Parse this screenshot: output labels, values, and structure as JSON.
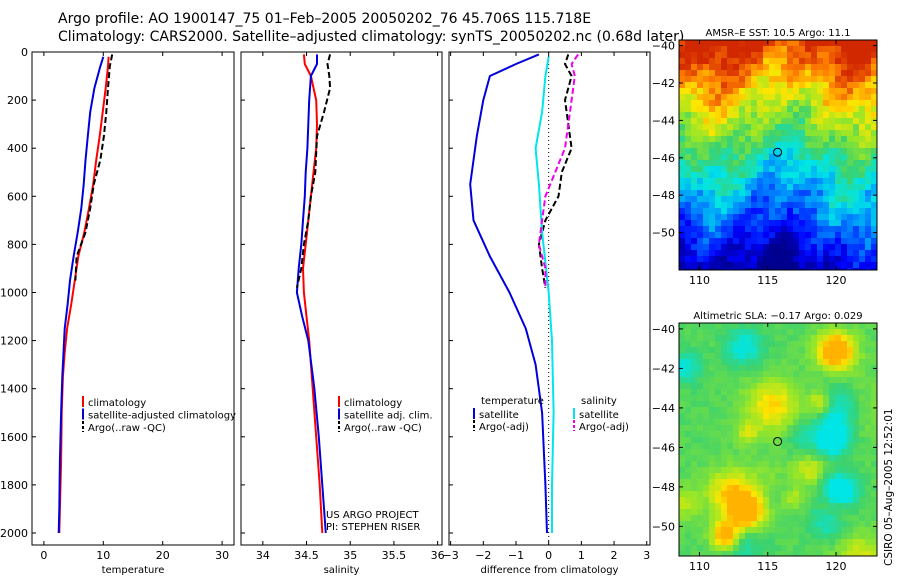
{
  "title": {
    "line1": "Argo profile: AO 1900147_75 01–Feb–2005 20050202_76 45.706S 115.718E",
    "line2": "Climatology: CARS2000. Satellite–adjusted climatology: synTS_20050202.nc (0.68d later)"
  },
  "side_label": "CSIRO 05–Aug–2005 12:52:01",
  "colors": {
    "red": "#ff0000",
    "blue": "#0000dd",
    "black": "#000000",
    "cyan": "#00e5ee",
    "magenta": "#ee00ee"
  },
  "chart_data": [
    {
      "type": "line",
      "xlabel": "temperature",
      "xlim": [
        -2,
        32
      ],
      "ylim": [
        2050,
        0
      ],
      "xticks": [
        "0",
        "10",
        "20",
        "30"
      ],
      "yticks": [
        "0",
        "200",
        "400",
        "600",
        "800",
        "1000",
        "1200",
        "1400",
        "1600",
        "1800",
        "2000"
      ],
      "legend": [
        "climatology",
        "satellite-adjusted climatology",
        "Argo(..raw -QC)"
      ],
      "series": [
        {
          "name": "climatology",
          "color": "red",
          "dash": false,
          "points": [
            [
              10.9,
              20
            ],
            [
              10.8,
              60
            ],
            [
              10.4,
              150
            ],
            [
              9.9,
              250
            ],
            [
              9.4,
              350
            ],
            [
              8.8,
              450
            ],
            [
              8.3,
              550
            ],
            [
              7.6,
              650
            ],
            [
              6.8,
              750
            ],
            [
              5.8,
              850
            ],
            [
              5.2,
              950
            ],
            [
              4.6,
              1050
            ],
            [
              3.9,
              1150
            ],
            [
              3.5,
              1250
            ],
            [
              3.2,
              1350
            ],
            [
              3.0,
              1500
            ],
            [
              2.9,
              1700
            ],
            [
              2.7,
              1900
            ],
            [
              2.6,
              2000
            ]
          ]
        },
        {
          "name": "satellite-adjusted climatology",
          "color": "blue",
          "dash": false,
          "points": [
            [
              10.0,
              20
            ],
            [
              9.5,
              60
            ],
            [
              8.5,
              150
            ],
            [
              7.8,
              250
            ],
            [
              7.4,
              350
            ],
            [
              7.0,
              450
            ],
            [
              6.7,
              550
            ],
            [
              6.3,
              650
            ],
            [
              5.7,
              750
            ],
            [
              5.0,
              850
            ],
            [
              4.4,
              950
            ],
            [
              4.0,
              1050
            ],
            [
              3.5,
              1150
            ],
            [
              3.3,
              1250
            ],
            [
              3.1,
              1350
            ],
            [
              2.9,
              1500
            ],
            [
              2.7,
              1700
            ],
            [
              2.6,
              1900
            ],
            [
              2.5,
              2000
            ]
          ]
        },
        {
          "name": "Argo(..raw -QC)",
          "color": "black",
          "dash": true,
          "points": [
            [
              11.5,
              10
            ],
            [
              11.1,
              60
            ],
            [
              10.8,
              150
            ],
            [
              10.5,
              250
            ],
            [
              10.1,
              350
            ],
            [
              9.5,
              450
            ],
            [
              8.4,
              550
            ],
            [
              7.8,
              650
            ],
            [
              7.0,
              750
            ],
            [
              5.5,
              850
            ],
            [
              5.3,
              950
            ]
          ]
        }
      ]
    },
    {
      "type": "line",
      "xlabel": "salinity",
      "xlim": [
        33.75,
        36.05
      ],
      "ylim": [
        2050,
        0
      ],
      "xticks": [
        "34",
        "34.5",
        "35",
        "35.5",
        "36"
      ],
      "legend": [
        "climatology",
        "satellite adj. clim.",
        "Argo(..raw -QC)"
      ],
      "annotation": [
        "US ARGO PROJECT",
        "PI: STEPHEN RISER"
      ],
      "series": [
        {
          "name": "climatology",
          "color": "red",
          "dash": false,
          "points": [
            [
              34.47,
              10
            ],
            [
              34.48,
              50
            ],
            [
              34.55,
              100
            ],
            [
              34.61,
              200
            ],
            [
              34.62,
              300
            ],
            [
              34.61,
              400
            ],
            [
              34.58,
              500
            ],
            [
              34.55,
              600
            ],
            [
              34.52,
              700
            ],
            [
              34.49,
              800
            ],
            [
              34.46,
              900
            ],
            [
              34.47,
              1000
            ],
            [
              34.5,
              1100
            ],
            [
              34.53,
              1200
            ],
            [
              34.57,
              1400
            ],
            [
              34.61,
              1600
            ],
            [
              34.65,
              1800
            ],
            [
              34.68,
              2000
            ]
          ]
        },
        {
          "name": "satellite adj. clim.",
          "color": "blue",
          "dash": false,
          "points": [
            [
              34.62,
              10
            ],
            [
              34.62,
              50
            ],
            [
              34.55,
              100
            ],
            [
              34.53,
              200
            ],
            [
              34.52,
              300
            ],
            [
              34.51,
              400
            ],
            [
              34.49,
              500
            ],
            [
              34.48,
              600
            ],
            [
              34.46,
              700
            ],
            [
              34.44,
              800
            ],
            [
              34.41,
              900
            ],
            [
              34.39,
              1000
            ],
            [
              34.45,
              1100
            ],
            [
              34.52,
              1200
            ],
            [
              34.59,
              1400
            ],
            [
              34.64,
              1600
            ],
            [
              34.68,
              1800
            ],
            [
              34.72,
              2000
            ]
          ]
        },
        {
          "name": "Argo(..raw -QC)",
          "color": "black",
          "dash": true,
          "points": [
            [
              34.77,
              10
            ],
            [
              34.74,
              50
            ],
            [
              34.76,
              100
            ],
            [
              34.77,
              150
            ],
            [
              34.7,
              250
            ],
            [
              34.62,
              350
            ],
            [
              34.6,
              500
            ],
            [
              34.55,
              600
            ],
            [
              34.52,
              700
            ],
            [
              34.47,
              800
            ],
            [
              34.44,
              900
            ],
            [
              34.39,
              980
            ]
          ]
        }
      ]
    },
    {
      "type": "line",
      "xlabel": "difference from climatology",
      "xlim": [
        -3.05,
        3.1
      ],
      "ylim": [
        2050,
        0
      ],
      "xticks": [
        "−3",
        "−2",
        "−1",
        "0",
        "1",
        "2",
        "3"
      ],
      "legend_left": {
        "header": "temperature",
        "items": [
          "satellite",
          "Argo(-adj)"
        ]
      },
      "legend_right": {
        "header": "salinity",
        "items": [
          "satellite",
          "Argo(-adj)"
        ]
      },
      "series": [
        {
          "name": "temperature satellite",
          "color": "blue",
          "dash": false,
          "points": [
            [
              -0.3,
              10
            ],
            [
              -1.0,
              50
            ],
            [
              -1.8,
              100
            ],
            [
              -2.0,
              200
            ],
            [
              -2.2,
              350
            ],
            [
              -2.4,
              550
            ],
            [
              -2.3,
              700
            ],
            [
              -1.8,
              850
            ],
            [
              -1.2,
              1000
            ],
            [
              -0.7,
              1150
            ],
            [
              -0.4,
              1300
            ],
            [
              -0.2,
              1500
            ],
            [
              -0.1,
              1800
            ],
            [
              -0.05,
              2000
            ]
          ]
        },
        {
          "name": "temperature Argo(-adj)",
          "color": "black",
          "dash": true,
          "points": [
            [
              0.6,
              10
            ],
            [
              0.5,
              50
            ],
            [
              0.7,
              100
            ],
            [
              0.5,
              200
            ],
            [
              0.6,
              300
            ],
            [
              0.7,
              400
            ],
            [
              0.4,
              500
            ],
            [
              0.3,
              600
            ],
            [
              -0.1,
              700
            ],
            [
              -0.3,
              800
            ],
            [
              -0.2,
              900
            ],
            [
              -0.1,
              980
            ]
          ]
        },
        {
          "name": "salinity satellite",
          "color": "cyan",
          "dash": false,
          "points": [
            [
              0.0,
              20
            ],
            [
              -0.1,
              100
            ],
            [
              -0.2,
              250
            ],
            [
              -0.4,
              400
            ],
            [
              -0.3,
              550
            ],
            [
              -0.2,
              750
            ],
            [
              0.0,
              1000
            ],
            [
              0.1,
              1200
            ],
            [
              0.15,
              1500
            ],
            [
              0.1,
              1800
            ],
            [
              0.1,
              2000
            ]
          ]
        },
        {
          "name": "salinity Argo(-adj)",
          "color": "magenta",
          "dash": true,
          "points": [
            [
              0.9,
              10
            ],
            [
              0.7,
              50
            ],
            [
              0.8,
              100
            ],
            [
              0.7,
              200
            ],
            [
              0.6,
              300
            ],
            [
              0.5,
              400
            ],
            [
              0.2,
              500
            ],
            [
              -0.1,
              600
            ],
            [
              -0.2,
              700
            ],
            [
              -0.3,
              800
            ],
            [
              -0.1,
              900
            ],
            [
              -0.1,
              980
            ]
          ]
        }
      ]
    },
    {
      "type": "heatmap",
      "title": "AMSR–E SST: 10.5 Argo: 11.1",
      "colormap": "sst",
      "xlim": [
        108.5,
        123
      ],
      "ylim": [
        -52,
        -39.7
      ],
      "xticks": [
        "110",
        "115",
        "120"
      ],
      "yticks": [
        "−40",
        "−42",
        "−44",
        "−46",
        "−48",
        "−50"
      ],
      "marker": {
        "lon": 115.72,
        "lat": -45.7
      }
    },
    {
      "type": "heatmap",
      "title": "Altimetric SLA: −0.17 Argo: 0.029",
      "colormap": "sla",
      "xlim": [
        108.5,
        123
      ],
      "ylim": [
        -51.5,
        -39.7
      ],
      "xticks": [
        "110",
        "115",
        "120"
      ],
      "yticks": [
        "−40",
        "−42",
        "−44",
        "−46",
        "−48",
        "−50"
      ],
      "marker": {
        "lon": 115.72,
        "lat": -45.7
      }
    }
  ]
}
